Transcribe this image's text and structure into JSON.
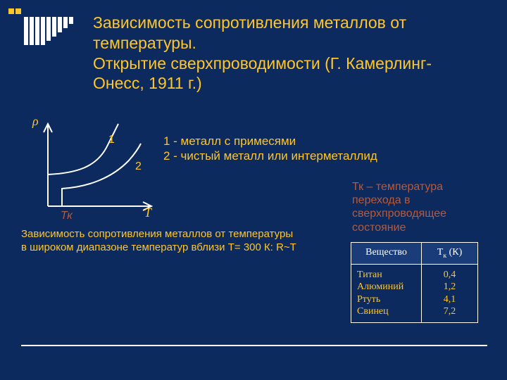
{
  "background_color": "#0c2a5e",
  "accent_color": "#ffc629",
  "text_color": "#ffffff",
  "tk_color": "#b85a3a",
  "white": "#ffffff",
  "title": {
    "line1": "Зависимость сопротивления металлов от температуры.",
    "line2": "Открытие сверхпроводимости (Г. Камерлинг-Онесс, 1911 г.)",
    "fontsize": 23,
    "color": "#ffc629"
  },
  "chart": {
    "axis_color": "#ffffff",
    "axis_width": 2,
    "curve_width": 2,
    "label_rho": "ρ",
    "label_rho_color": "#ffc629",
    "label_t": "T",
    "label_t_color": "#ffc629",
    "label_tk": "Тк",
    "label_tk_color": "#b85a3a",
    "curve1_label": "1",
    "curve2_label": "2",
    "curve_label_color": "#ffc629",
    "label_fontsize": 16
  },
  "legend": {
    "line1": "1 - металл с  примесями",
    "line2": " 2 - чистый металл или интерметаллид",
    "fontsize": 17,
    "color": "#ffc629"
  },
  "tk_note": {
    "text": "Тк – температура перехода в сверхпроводящее состояние",
    "fontsize": 16,
    "color": "#b85a3a"
  },
  "caption": {
    "line1": "Зависимость сопротивления металлов от температуры",
    "line2": " в широком диапазоне температур вблизи Т= 300 К: R~T",
    "fontsize": 15,
    "color": "#ffc629"
  },
  "table": {
    "border_color": "#ffffff",
    "border_width": 1,
    "header_bg": "#1a3d7a",
    "header_color": "#ffffff",
    "body_color": "#ffc629",
    "col1_width": 100,
    "col2_width": 80,
    "fontsize": 14,
    "cell_pad_v": 6,
    "cell_pad_h": 8,
    "header1": "Вещество",
    "header2_pre": "Т",
    "header2_sub": "к",
    "header2_post": " (К)",
    "rows": [
      {
        "name": "Титан",
        "tk": "0,4"
      },
      {
        "name": "Алюминий",
        "tk": "1,2"
      },
      {
        "name": "Ртуть",
        "tk": "4,1"
      },
      {
        "name": "Свинец",
        "tk": "7,2"
      }
    ]
  },
  "deco": {
    "sq_color": "#ffc629",
    "bar_color": "#ffffff"
  },
  "divider_color": "#ffffff"
}
